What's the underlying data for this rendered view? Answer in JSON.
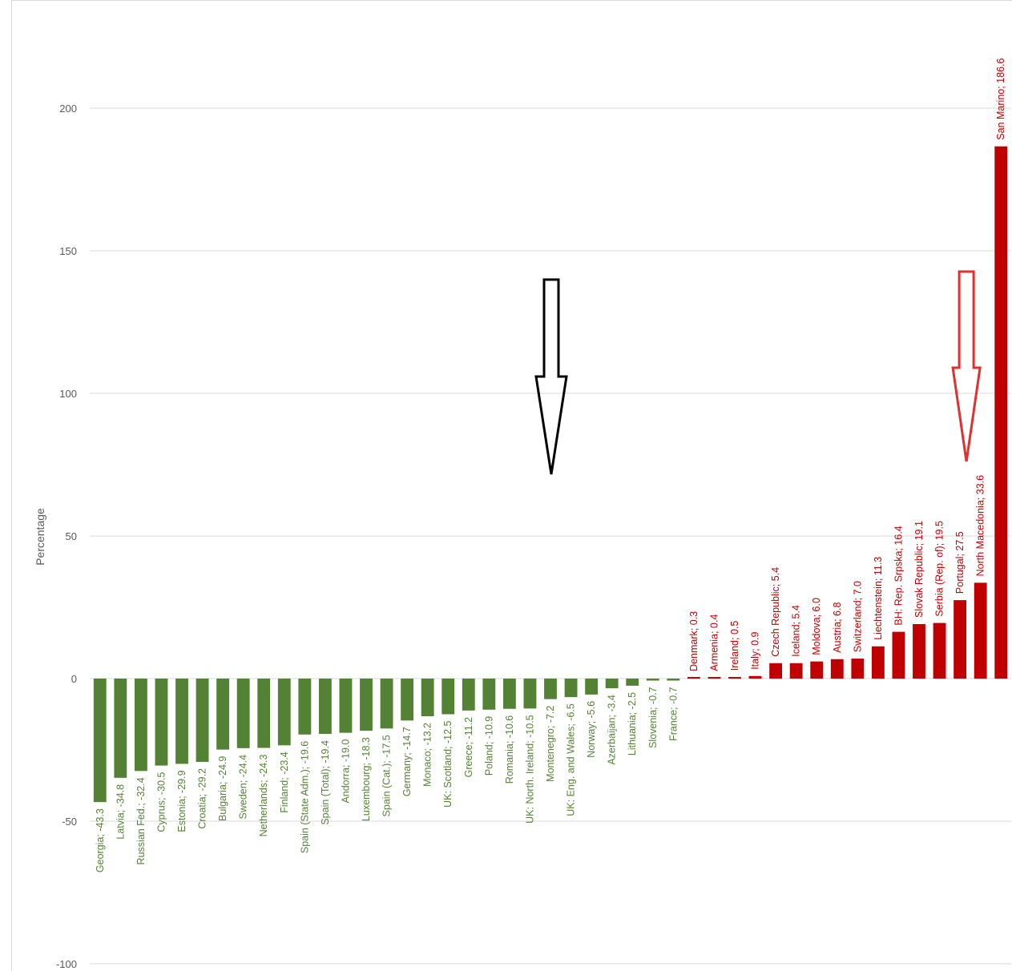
{
  "chart_data": {
    "type": "bar",
    "title": "",
    "xlabel": "",
    "ylabel": "Percentage",
    "ylim": [
      -100,
      200
    ],
    "yticks": [
      200,
      150,
      100,
      50,
      0,
      -50,
      -100
    ],
    "grid": true,
    "legend": "none",
    "colors": {
      "negative": "#548235",
      "positive": "#c00000",
      "grid": "#d9d9d9",
      "axis_text": "#595959"
    },
    "categories": [
      "Georgia",
      "Latvia",
      "Russian Fed.",
      "Cyprus",
      "Estonia",
      "Croatia",
      "Bulgaria",
      "Sweden",
      "Netherlands",
      "Finland",
      "Spain (State Adm.)",
      "Spain (Total)",
      "Andorra",
      "Luxembourg",
      "Spain (Cat.)",
      "Germany",
      "Monaco",
      "UK: Scotland",
      "Greece",
      "Poland",
      "Romania",
      "UK: North. Ireland",
      "Montenegro",
      "UK: Eng. and Wales",
      "Norway",
      "Azerbaijan",
      "Lithuania",
      "Slovenia",
      "France",
      "Denmark",
      "Armenia",
      "Ireland",
      "Italy",
      "Czech Republic",
      "Iceland",
      "Moldova",
      "Austria",
      "Switzerland",
      "Liechtenstein",
      "BH: Rep. Srpska",
      "Slovak Republic",
      "Serbia (Rep. of)",
      "Portugal",
      "North Macedonia",
      "San Marino"
    ],
    "values": [
      -43.3,
      -34.8,
      -32.4,
      -30.5,
      -29.9,
      -29.2,
      -24.9,
      -24.4,
      -24.3,
      -23.4,
      -19.6,
      -19.4,
      -19.0,
      -18.3,
      -17.5,
      -14.7,
      -13.2,
      -12.5,
      -11.2,
      -10.9,
      -10.6,
      -10.5,
      -7.2,
      -6.5,
      -5.6,
      -3.4,
      -2.5,
      -0.7,
      -0.7,
      0.3,
      0.4,
      0.5,
      0.9,
      5.4,
      5.4,
      6.0,
      6.8,
      7.0,
      11.3,
      16.4,
      19.1,
      19.5,
      27.5,
      33.6,
      186.6
    ],
    "data_labels": [
      "Georgia; -43.3",
      "Latvia; -34.8",
      "Russian Fed.; -32.4",
      "Cyprus; -30.5",
      "Estonia; -29.9",
      "Croatia; -29.2",
      "Bulgaria; -24.9",
      "Sweden; -24.4",
      "Netherlands; -24.3",
      "Finland; -23.4",
      "Spain (State Adm.); -19.6",
      "Spain (Total); -19.4",
      "Andorra; -19.0",
      "Luxembourg; -18.3",
      "Spain (Cat.); -17.5",
      "Germany; -14.7",
      "Monaco; -13.2",
      "UK: Scotland; -12.5",
      "Greece; -11.2",
      "Poland; -10.9",
      "Romania; -10.6",
      "UK: North. Ireland; -10.5",
      "Montenegro; -7.2",
      "UK: Eng. and Wales; -6.5",
      "Norway; -5.6",
      "Azerbaijan; -3.4",
      "Lithuania; -2.5",
      "Slovenia; -0.7",
      "France; -0.7",
      "Denmark; 0.3",
      "Armenia; 0.4",
      "Ireland; 0.5",
      "Italy; 0.9",
      "Czech Republic; 5.4",
      "Iceland; 5.4",
      "Moldova; 6.0",
      "Austria; 6.8",
      "Switzerland; 7.0",
      "Liechtenstein; 11.3",
      "BH: Rep. Srpska; 16.4",
      "Slovak Republic; 19.1",
      "Serbia (Rep. of); 19.5",
      "Portugal; 27.5",
      "North Macedonia; 33.6",
      "San Marino; 186.6"
    ],
    "annotations": [
      {
        "type": "arrow",
        "direction": "down",
        "color": "#000000",
        "near_category": "Montenegro"
      },
      {
        "type": "arrow",
        "direction": "down",
        "color": "#e03030",
        "near_category": "Portugal"
      }
    ]
  }
}
